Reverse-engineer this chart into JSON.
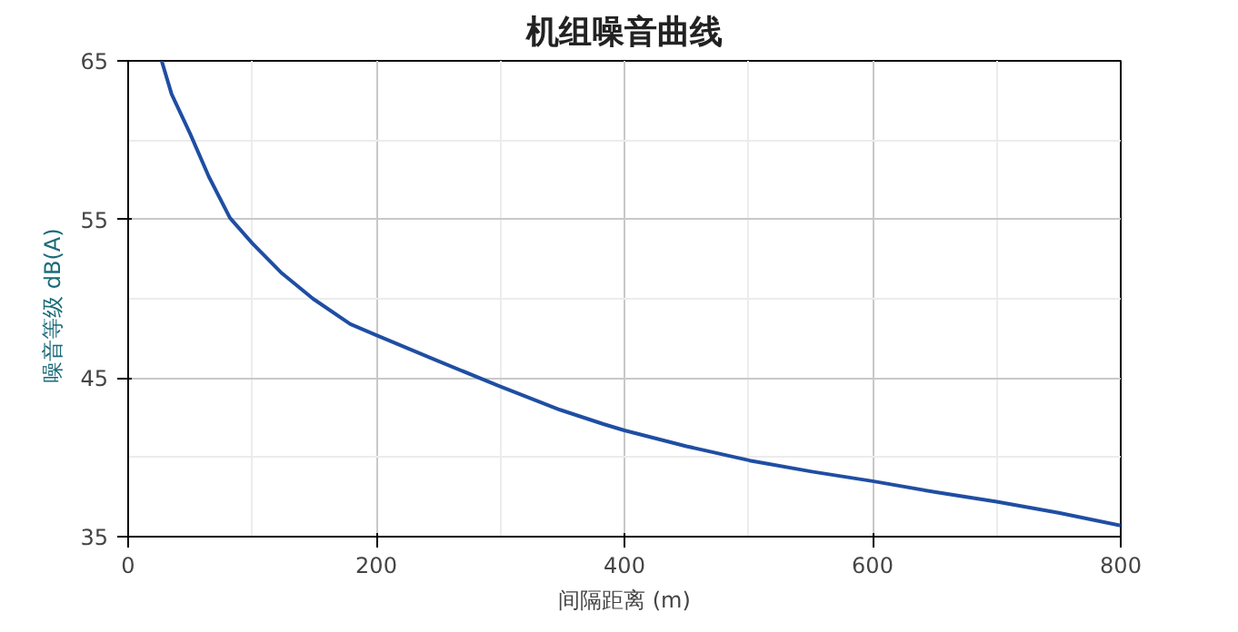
{
  "chart_data": {
    "type": "line",
    "title": "机组噪音曲线",
    "xlabel": "间隔距离 (m)",
    "ylabel": "噪音等级   dB(A)",
    "x": [
      27,
      35,
      50,
      65,
      82,
      100,
      124,
      149,
      179,
      200,
      249,
      299,
      348,
      383,
      400,
      450,
      501,
      551,
      600,
      651,
      700,
      750,
      800
    ],
    "series": [
      {
        "color": "#1f4ea3",
        "values": [
          65,
          62.9,
          60.4,
          57.7,
          55.1,
          53.5,
          51.6,
          50.0,
          48.4,
          47.7,
          46.1,
          44.5,
          43.0,
          42.1,
          41.7,
          40.7,
          39.8,
          39.1,
          38.5,
          37.8,
          37.2,
          36.5,
          35.7
        ]
      }
    ],
    "xlim": [
      0,
      800
    ],
    "ylim": [
      35,
      65
    ],
    "xticks": [
      0,
      200,
      400,
      600,
      800
    ],
    "yticks": [
      35,
      45,
      55,
      65
    ],
    "grid": true,
    "marker": "none",
    "line_style": "solid"
  }
}
